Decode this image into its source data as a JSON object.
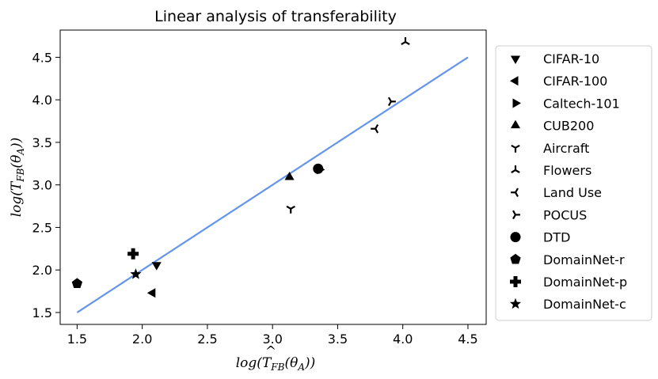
{
  "chart_data": {
    "type": "scatter",
    "title": "Linear analysis of transferability",
    "xlabel": "log(T_FB^(θ_A))",
    "ylabel": "log(T_FB(θ_A))",
    "xlim": [
      1.37,
      4.64
    ],
    "ylim": [
      1.36,
      4.82
    ],
    "xticks": [
      1.5,
      2.0,
      2.5,
      3.0,
      3.5,
      4.0,
      4.5
    ],
    "yticks": [
      1.5,
      2.0,
      2.5,
      3.0,
      3.5,
      4.0,
      4.5
    ],
    "xtick_labels": [
      "1.5",
      "2.0",
      "2.5",
      "3.0",
      "3.5",
      "4.0",
      "4.5"
    ],
    "ytick_labels": [
      "1.5",
      "2.0",
      "2.5",
      "3.0",
      "3.5",
      "4.0",
      "4.5"
    ],
    "grid": false,
    "legend_position": "right",
    "fit_line": {
      "x": [
        1.5,
        4.5
      ],
      "y": [
        1.5,
        4.5
      ],
      "color": "#6495ED"
    },
    "series": [
      {
        "name": "CIFAR-10",
        "marker": "triangle-down",
        "points": [
          {
            "x": 2.11,
            "y": 2.06
          }
        ]
      },
      {
        "name": "CIFAR-100",
        "marker": "triangle-left",
        "points": [
          {
            "x": 2.08,
            "y": 1.73
          }
        ]
      },
      {
        "name": "Caltech-101",
        "marker": "triangle-right",
        "points": [
          {
            "x": 3.36,
            "y": 3.18
          }
        ]
      },
      {
        "name": "CUB200",
        "marker": "triangle-up",
        "points": [
          {
            "x": 3.13,
            "y": 3.09
          }
        ]
      },
      {
        "name": "Aircraft",
        "marker": "tri-down",
        "points": [
          {
            "x": 3.14,
            "y": 2.72
          }
        ]
      },
      {
        "name": "Flowers",
        "marker": "tri-up",
        "points": [
          {
            "x": 4.02,
            "y": 4.68
          }
        ]
      },
      {
        "name": "Land Use",
        "marker": "tri-left",
        "points": [
          {
            "x": 3.79,
            "y": 3.66
          }
        ]
      },
      {
        "name": "POCUS",
        "marker": "tri-right",
        "points": [
          {
            "x": 3.91,
            "y": 3.98
          }
        ]
      },
      {
        "name": "DTD",
        "marker": "circle",
        "points": [
          {
            "x": 3.35,
            "y": 3.19
          }
        ]
      },
      {
        "name": "DomainNet-r",
        "marker": "pentagon",
        "points": [
          {
            "x": 1.5,
            "y": 1.84
          }
        ]
      },
      {
        "name": "DomainNet-p",
        "marker": "plus",
        "points": [
          {
            "x": 1.93,
            "y": 2.19
          }
        ]
      },
      {
        "name": "DomainNet-c",
        "marker": "star",
        "points": [
          {
            "x": 1.95,
            "y": 1.95
          }
        ]
      }
    ]
  }
}
